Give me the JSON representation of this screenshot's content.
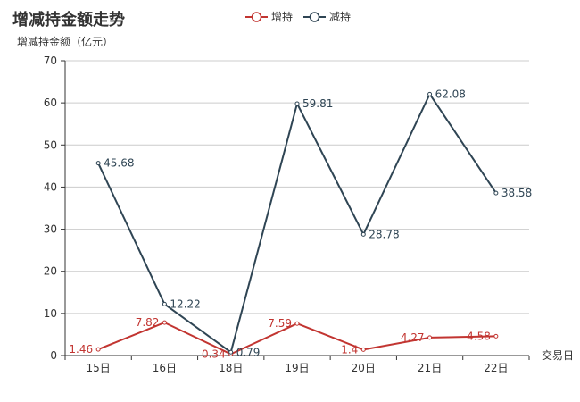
{
  "chart_data": {
    "type": "line",
    "title": "增减持金额走势",
    "ylabel": "增减持金额（亿元）",
    "xlabel": "交易日",
    "categories": [
      "15日",
      "16日",
      "18日",
      "19日",
      "20日",
      "21日",
      "22日"
    ],
    "ylim": [
      0,
      70
    ],
    "yticks": [
      0,
      10,
      20,
      30,
      40,
      50,
      60,
      70
    ],
    "grid": true,
    "legend_position": "top-center",
    "series": [
      {
        "name": "增持",
        "color": "#c23531",
        "values": [
          1.46,
          7.82,
          0.34,
          7.59,
          1.4,
          4.27,
          4.58
        ]
      },
      {
        "name": "减持",
        "color": "#2f4554",
        "values": [
          45.68,
          12.22,
          0.79,
          59.81,
          28.78,
          62.08,
          38.58
        ]
      }
    ]
  }
}
